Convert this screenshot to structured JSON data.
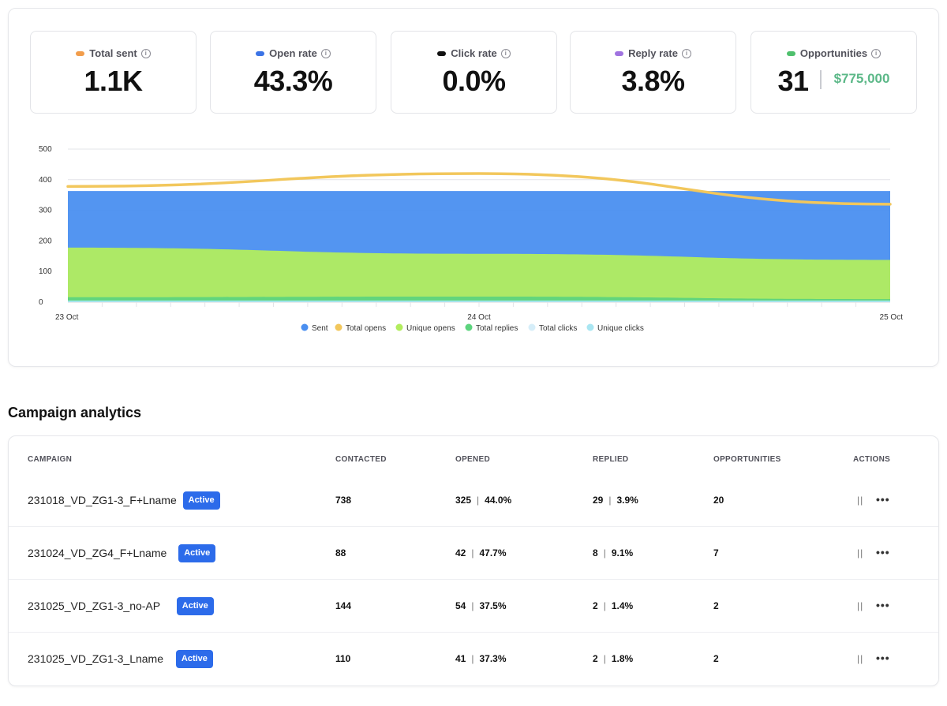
{
  "stats": [
    {
      "label": "Total sent",
      "value": "1.1K",
      "color": "#f29d4b"
    },
    {
      "label": "Open rate",
      "value": "43.3%",
      "color": "#3b73e6"
    },
    {
      "label": "Click rate",
      "value": "0.0%",
      "color": "#111111"
    },
    {
      "label": "Reply rate",
      "value": "3.8%",
      "color": "#a073e0"
    },
    {
      "label": "Opportunities",
      "value": "31",
      "extra": "$775,000",
      "color": "#4fc06d"
    }
  ],
  "info_glyph": "i",
  "chart_data": {
    "type": "area",
    "x": [
      "23 Oct",
      "24 Oct",
      "25 Oct"
    ],
    "ylim": [
      0,
      500
    ],
    "yticks": [
      0,
      100,
      200,
      300,
      400,
      500
    ],
    "series": [
      {
        "name": "Sent",
        "color": "#4a8ff0",
        "values": [
          363,
          363,
          363
        ]
      },
      {
        "name": "Total opens",
        "color": "#f2c75c",
        "values": [
          378,
          420,
          320
        ]
      },
      {
        "name": "Unique opens",
        "color": "#b2ed5e",
        "values": [
          178,
          158,
          138
        ]
      },
      {
        "name": "Total replies",
        "color": "#5dd47e",
        "values": [
          16,
          18,
          10
        ]
      },
      {
        "name": "Total clicks",
        "color": "#d6eef9",
        "values": [
          0,
          0,
          0
        ]
      },
      {
        "name": "Unique clicks",
        "color": "#a9e6f2",
        "values": [
          5,
          5,
          5
        ]
      }
    ]
  },
  "analytics": {
    "title": "Campaign analytics",
    "columns": [
      "CAMPAIGN",
      "CONTACTED",
      "OPENED",
      "REPLIED",
      "OPPORTUNITIES",
      "ACTIONS"
    ],
    "rows": [
      {
        "name": "231018_VD_ZG1-3_F+Lname",
        "status": "Active",
        "contacted": "738",
        "opened": "325",
        "opened_pct": "44.0%",
        "replied": "29",
        "replied_pct": "3.9%",
        "opportunities": "20"
      },
      {
        "name": "231024_VD_ZG4_F+Lname",
        "status": "Active",
        "contacted": "88",
        "opened": "42",
        "opened_pct": "47.7%",
        "replied": "8",
        "replied_pct": "9.1%",
        "opportunities": "7"
      },
      {
        "name": "231025_VD_ZG1-3_no-AP",
        "status": "Active",
        "contacted": "144",
        "opened": "54",
        "opened_pct": "37.5%",
        "replied": "2",
        "replied_pct": "1.4%",
        "opportunities": "2"
      },
      {
        "name": "231025_VD_ZG1-3_Lname",
        "status": "Active",
        "contacted": "110",
        "opened": "41",
        "opened_pct": "37.3%",
        "replied": "2",
        "replied_pct": "1.8%",
        "opportunities": "2"
      }
    ],
    "pause_glyph": "||",
    "more_glyph": "•••",
    "value_separator": "|"
  }
}
